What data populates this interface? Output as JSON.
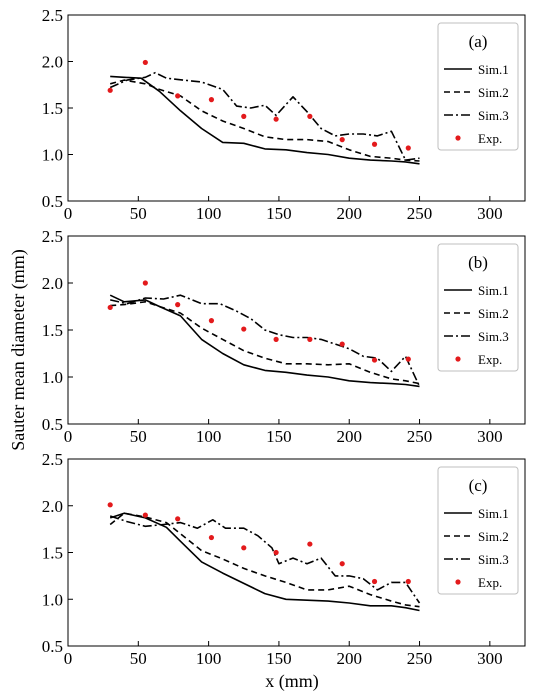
{
  "figure": {
    "ylabel": "Sauter mean diameter (mm)",
    "xlabel": "x (mm)"
  },
  "chart_data": [
    {
      "type": "line",
      "panel_label": "(a)",
      "xlim": [
        0,
        325
      ],
      "ylim": [
        0.5,
        2.5
      ],
      "xticks": [
        0,
        50,
        100,
        150,
        200,
        250,
        300
      ],
      "yticks": [
        0.5,
        1.0,
        1.5,
        2.0,
        2.5
      ],
      "legend_position": "top-right",
      "series": [
        {
          "name": "Sim.1",
          "style": "solid",
          "color": "#000000",
          "x": [
            30,
            40,
            52,
            65,
            80,
            95,
            110,
            125,
            140,
            155,
            170,
            185,
            200,
            215,
            230,
            240,
            250
          ],
          "y": [
            1.84,
            1.83,
            1.82,
            1.68,
            1.47,
            1.28,
            1.13,
            1.12,
            1.06,
            1.05,
            1.02,
            1.0,
            0.96,
            0.94,
            0.93,
            0.92,
            0.9
          ]
        },
        {
          "name": "Sim.2",
          "style": "dashed",
          "color": "#000000",
          "x": [
            30,
            40,
            55,
            65,
            80,
            95,
            110,
            125,
            140,
            155,
            170,
            185,
            200,
            215,
            230,
            240,
            250
          ],
          "y": [
            1.76,
            1.8,
            1.76,
            1.7,
            1.63,
            1.47,
            1.36,
            1.28,
            1.19,
            1.16,
            1.16,
            1.14,
            1.05,
            0.98,
            0.96,
            0.94,
            0.93
          ]
        },
        {
          "name": "Sim.3",
          "style": "dashdot",
          "color": "#000000",
          "x": [
            30,
            42,
            55,
            62,
            70,
            82,
            95,
            110,
            120,
            130,
            140,
            148,
            160,
            170,
            180,
            190,
            200,
            210,
            220,
            230,
            240,
            250
          ],
          "y": [
            1.72,
            1.8,
            1.83,
            1.88,
            1.82,
            1.8,
            1.78,
            1.7,
            1.52,
            1.5,
            1.53,
            1.42,
            1.62,
            1.46,
            1.28,
            1.2,
            1.22,
            1.22,
            1.2,
            1.25,
            0.94,
            0.96
          ]
        },
        {
          "name": "Exp.",
          "style": "markers",
          "color": "#e31a1c",
          "x": [
            30,
            55,
            78,
            102,
            125,
            148,
            172,
            195,
            218,
            242
          ],
          "y": [
            1.69,
            1.99,
            1.63,
            1.59,
            1.41,
            1.38,
            1.41,
            1.16,
            1.11,
            1.07
          ]
        }
      ]
    },
    {
      "type": "line",
      "panel_label": "(b)",
      "xlim": [
        0,
        325
      ],
      "ylim": [
        0.5,
        2.5
      ],
      "xticks": [
        0,
        50,
        100,
        150,
        200,
        250,
        300
      ],
      "yticks": [
        0.5,
        1.0,
        1.5,
        2.0,
        2.5
      ],
      "legend_position": "top-right",
      "series": [
        {
          "name": "Sim.1",
          "style": "solid",
          "color": "#000000",
          "x": [
            30,
            40,
            55,
            65,
            80,
            95,
            110,
            125,
            140,
            155,
            170,
            185,
            200,
            215,
            230,
            240,
            250
          ],
          "y": [
            1.87,
            1.8,
            1.82,
            1.75,
            1.65,
            1.4,
            1.25,
            1.13,
            1.07,
            1.05,
            1.02,
            1.0,
            0.96,
            0.94,
            0.93,
            0.92,
            0.9
          ]
        },
        {
          "name": "Sim.2",
          "style": "dashed",
          "color": "#000000",
          "x": [
            30,
            40,
            55,
            65,
            80,
            95,
            110,
            125,
            140,
            155,
            170,
            185,
            200,
            215,
            230,
            240,
            250
          ],
          "y": [
            1.76,
            1.77,
            1.8,
            1.75,
            1.68,
            1.52,
            1.4,
            1.28,
            1.2,
            1.14,
            1.14,
            1.13,
            1.14,
            1.05,
            0.98,
            0.96,
            0.93
          ]
        },
        {
          "name": "Sim.3",
          "style": "dashdot",
          "color": "#000000",
          "x": [
            30,
            42,
            55,
            68,
            80,
            95,
            108,
            120,
            130,
            140,
            150,
            160,
            170,
            180,
            190,
            200,
            210,
            220,
            230,
            240,
            250
          ],
          "y": [
            1.82,
            1.78,
            1.84,
            1.83,
            1.87,
            1.78,
            1.78,
            1.7,
            1.62,
            1.5,
            1.45,
            1.42,
            1.42,
            1.4,
            1.35,
            1.3,
            1.22,
            1.2,
            1.06,
            1.22,
            0.9
          ]
        },
        {
          "name": "Exp.",
          "style": "markers",
          "color": "#e31a1c",
          "x": [
            30,
            55,
            78,
            102,
            125,
            148,
            172,
            195,
            218,
            242
          ],
          "y": [
            1.74,
            2.0,
            1.77,
            1.6,
            1.51,
            1.4,
            1.4,
            1.35,
            1.18,
            1.19
          ]
        }
      ]
    },
    {
      "type": "line",
      "panel_label": "(c)",
      "xlim": [
        0,
        325
      ],
      "ylim": [
        0.5,
        2.5
      ],
      "xticks": [
        0,
        50,
        100,
        150,
        200,
        250,
        300
      ],
      "yticks": [
        0.5,
        1.0,
        1.5,
        2.0,
        2.5
      ],
      "legend_position": "top-right",
      "series": [
        {
          "name": "Sim.1",
          "style": "solid",
          "color": "#000000",
          "x": [
            30,
            40,
            55,
            70,
            80,
            95,
            110,
            125,
            140,
            155,
            170,
            185,
            200,
            215,
            230,
            240,
            250
          ],
          "y": [
            1.87,
            1.92,
            1.87,
            1.77,
            1.62,
            1.4,
            1.28,
            1.17,
            1.06,
            1.0,
            0.99,
            0.98,
            0.96,
            0.93,
            0.93,
            0.91,
            0.88
          ]
        },
        {
          "name": "Sim.2",
          "style": "dashed",
          "color": "#000000",
          "x": [
            30,
            40,
            55,
            70,
            80,
            95,
            110,
            125,
            140,
            155,
            170,
            185,
            200,
            215,
            230,
            240,
            250
          ],
          "y": [
            1.8,
            1.92,
            1.88,
            1.82,
            1.7,
            1.52,
            1.43,
            1.33,
            1.25,
            1.18,
            1.1,
            1.1,
            1.14,
            1.05,
            0.98,
            0.94,
            0.92
          ]
        },
        {
          "name": "Sim.3",
          "style": "dashdot",
          "color": "#000000",
          "x": [
            30,
            42,
            55,
            68,
            80,
            92,
            103,
            112,
            125,
            135,
            145,
            150,
            160,
            170,
            180,
            190,
            200,
            210,
            220,
            230,
            240,
            250
          ],
          "y": [
            1.89,
            1.83,
            1.78,
            1.8,
            1.82,
            1.76,
            1.85,
            1.76,
            1.76,
            1.68,
            1.55,
            1.38,
            1.44,
            1.38,
            1.44,
            1.25,
            1.25,
            1.22,
            1.1,
            1.18,
            1.18,
            0.96
          ]
        },
        {
          "name": "Exp.",
          "style": "markers",
          "color": "#e31a1c",
          "x": [
            30,
            55,
            78,
            102,
            125,
            148,
            172,
            195,
            218,
            242
          ],
          "y": [
            2.01,
            1.9,
            1.86,
            1.66,
            1.55,
            1.5,
            1.59,
            1.38,
            1.19,
            1.19
          ]
        }
      ]
    }
  ]
}
